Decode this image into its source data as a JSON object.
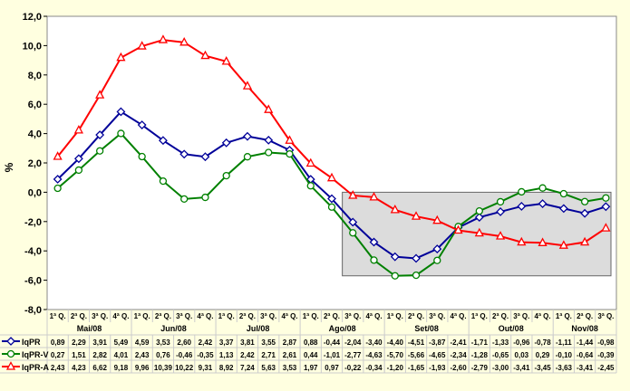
{
  "chart_data": {
    "type": "line",
    "ylabel": "%",
    "ylim": [
      -8,
      12
    ],
    "yticks": [
      "-8,0",
      "-6,0",
      "-4,0",
      "-2,0",
      "0,0",
      "2,0",
      "4,0",
      "6,0",
      "8,0",
      "10,0",
      "12,0"
    ],
    "categories": [
      "1ª Q.",
      "2ª Q.",
      "3ª Q.",
      "4ª Q.",
      "1ª Q.",
      "2ª Q.",
      "3ª Q.",
      "4ª Q.",
      "1ª Q.",
      "2ª Q.",
      "3ª Q.",
      "4ª Q.",
      "1ª Q.",
      "2ª Q.",
      "3ª Q.",
      "4ª Q.",
      "1ª Q.",
      "2ª Q.",
      "3ª Q.",
      "4ª Q.",
      "1ª Q.",
      "2ª Q.",
      "3ª Q.",
      "4ª Q.",
      "1ª Q.",
      "2ª Q.",
      "3ª Q."
    ],
    "months": [
      {
        "label": "Mai/08",
        "n": 4
      },
      {
        "label": "Jun/08",
        "n": 4
      },
      {
        "label": "Jul/08",
        "n": 4
      },
      {
        "label": "Ago/08",
        "n": 4
      },
      {
        "label": "Set/08",
        "n": 4
      },
      {
        "label": "Out/08",
        "n": 4
      },
      {
        "label": "Nov/08",
        "n": 3
      }
    ],
    "series": [
      {
        "name": "IqPR",
        "color": "#000099",
        "marker": "diamond",
        "values": [
          0.89,
          2.29,
          3.91,
          5.49,
          4.59,
          3.53,
          2.6,
          2.42,
          3.37,
          3.81,
          3.55,
          2.87,
          0.88,
          -0.44,
          -2.04,
          -3.4,
          -4.4,
          -4.51,
          -3.87,
          -2.41,
          -1.71,
          -1.33,
          -0.96,
          -0.78,
          -1.11,
          -1.44,
          -0.98
        ]
      },
      {
        "name": "IqPR-V",
        "color": "#008000",
        "marker": "circle",
        "values": [
          0.27,
          1.51,
          2.82,
          4.01,
          2.43,
          0.76,
          -0.46,
          -0.35,
          1.13,
          2.42,
          2.71,
          2.61,
          0.44,
          -1.01,
          -2.77,
          -4.63,
          -5.7,
          -5.66,
          -4.65,
          -2.34,
          -1.28,
          -0.65,
          0.03,
          0.29,
          -0.1,
          -0.64,
          -0.39
        ]
      },
      {
        "name": "IqPR-A",
        "color": "#ff0000",
        "marker": "triangle",
        "values": [
          2.43,
          4.23,
          6.62,
          9.18,
          9.96,
          10.39,
          10.22,
          9.31,
          8.92,
          7.24,
          5.63,
          3.53,
          1.97,
          0.97,
          -0.22,
          -0.34,
          -1.2,
          -1.65,
          -1.93,
          -2.6,
          -2.79,
          -3.0,
          -3.41,
          -3.45,
          -3.63,
          -3.41,
          -2.45
        ]
      }
    ],
    "highlight_box": {
      "from_index": 14,
      "to_index": 26,
      "ymin": -5.7,
      "ymax": 0
    }
  }
}
